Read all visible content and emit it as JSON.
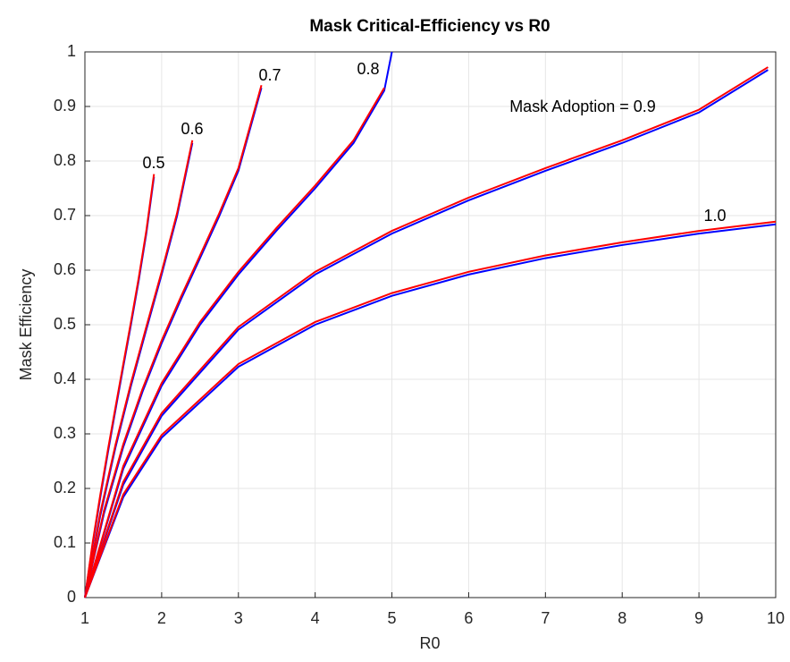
{
  "chart_data": {
    "type": "line",
    "title": "Mask Critical-Efficiency vs R0",
    "x_label": "R0",
    "y_label": "Mask Efficiency",
    "xlim": [
      1,
      10
    ],
    "xticks": [
      1,
      2,
      3,
      4,
      5,
      6,
      7,
      8,
      9,
      10
    ],
    "ylim": [
      0,
      1
    ],
    "yticks": [
      0,
      0.1,
      0.2,
      0.3,
      0.4,
      0.5,
      0.6,
      0.7,
      0.8,
      0.9,
      1
    ],
    "grid": true,
    "annotations": [
      "0.5",
      "0.6",
      "0.7",
      "0.8",
      "Mask Adoption = 0.9",
      "1.0"
    ],
    "series": [
      {
        "color": "#0000ff",
        "x": [
          1,
          1.1,
          1.2,
          1.3,
          1.4,
          1.5,
          1.6,
          1.7,
          1.8,
          1.9
        ],
        "values": [
          0,
          0.096,
          0.183,
          0.266,
          0.345,
          0.423,
          0.5,
          0.58,
          0.667,
          0.771
        ]
      },
      {
        "color": "#ff0000",
        "x": [
          1,
          1.1,
          1.2,
          1.3,
          1.4,
          1.5,
          1.6,
          1.7,
          1.8,
          1.9
        ],
        "values": [
          0,
          0.1,
          0.188,
          0.271,
          0.35,
          0.428,
          0.505,
          0.585,
          0.672,
          0.776
        ]
      },
      {
        "color": "#0000ff",
        "x": [
          1,
          1.2,
          1.4,
          1.6,
          1.8,
          2,
          2.2,
          2.4
        ],
        "values": [
          0,
          0.15,
          0.276,
          0.388,
          0.491,
          0.592,
          0.699,
          0.833
        ]
      },
      {
        "color": "#ff0000",
        "x": [
          1,
          1.2,
          1.4,
          1.6,
          1.8,
          2,
          2.2,
          2.4
        ],
        "values": [
          0,
          0.155,
          0.281,
          0.393,
          0.496,
          0.597,
          0.704,
          0.838
        ]
      },
      {
        "color": "#0000ff",
        "x": [
          1,
          1.25,
          1.5,
          1.75,
          2,
          2.25,
          2.5,
          2.75,
          3,
          3.3
        ],
        "values": [
          0,
          0.155,
          0.276,
          0.377,
          0.466,
          0.546,
          0.622,
          0.699,
          0.782,
          0.934
        ]
      },
      {
        "color": "#ff0000",
        "x": [
          1,
          1.25,
          1.5,
          1.75,
          2,
          2.25,
          2.5,
          2.75,
          3,
          3.3
        ],
        "values": [
          0,
          0.16,
          0.281,
          0.382,
          0.471,
          0.551,
          0.627,
          0.704,
          0.787,
          0.939
        ]
      },
      {
        "color": "#0000ff",
        "x": [
          1,
          1.5,
          2,
          2.5,
          3,
          3.5,
          4,
          4.5,
          4.9,
          5
        ],
        "values": [
          0,
          0.236,
          0.388,
          0.5,
          0.592,
          0.673,
          0.75,
          0.833,
          0.929,
          1
        ]
      },
      {
        "color": "#ff0000",
        "x": [
          1,
          1.5,
          2,
          2.5,
          3,
          3.5,
          4,
          4.5,
          4.9
        ],
        "values": [
          0,
          0.241,
          0.393,
          0.505,
          0.597,
          0.678,
          0.755,
          0.838,
          0.934
        ]
      },
      {
        "color": "#0000ff",
        "x": [
          1,
          1.5,
          2,
          3,
          4,
          5,
          6,
          7,
          8,
          9,
          9.9
        ],
        "values": [
          0,
          0.207,
          0.333,
          0.491,
          0.592,
          0.667,
          0.728,
          0.782,
          0.833,
          0.889,
          0.967
        ]
      },
      {
        "color": "#ff0000",
        "x": [
          1,
          1.5,
          2,
          3,
          4,
          5,
          6,
          7,
          8,
          9,
          9.9
        ],
        "values": [
          0,
          0.212,
          0.338,
          0.496,
          0.597,
          0.672,
          0.733,
          0.787,
          0.838,
          0.894,
          0.972
        ]
      },
      {
        "color": "#0000ff",
        "x": [
          1,
          1.5,
          2,
          3,
          4,
          5,
          6,
          7,
          8,
          9,
          10
        ],
        "values": [
          0,
          0.184,
          0.293,
          0.423,
          0.5,
          0.553,
          0.592,
          0.622,
          0.646,
          0.667,
          0.684
        ]
      },
      {
        "color": "#ff0000",
        "x": [
          1,
          1.5,
          2,
          3,
          4,
          5,
          6,
          7,
          8,
          9,
          10
        ],
        "values": [
          0,
          0.189,
          0.298,
          0.428,
          0.505,
          0.558,
          0.597,
          0.627,
          0.651,
          0.672,
          0.689
        ]
      }
    ]
  }
}
